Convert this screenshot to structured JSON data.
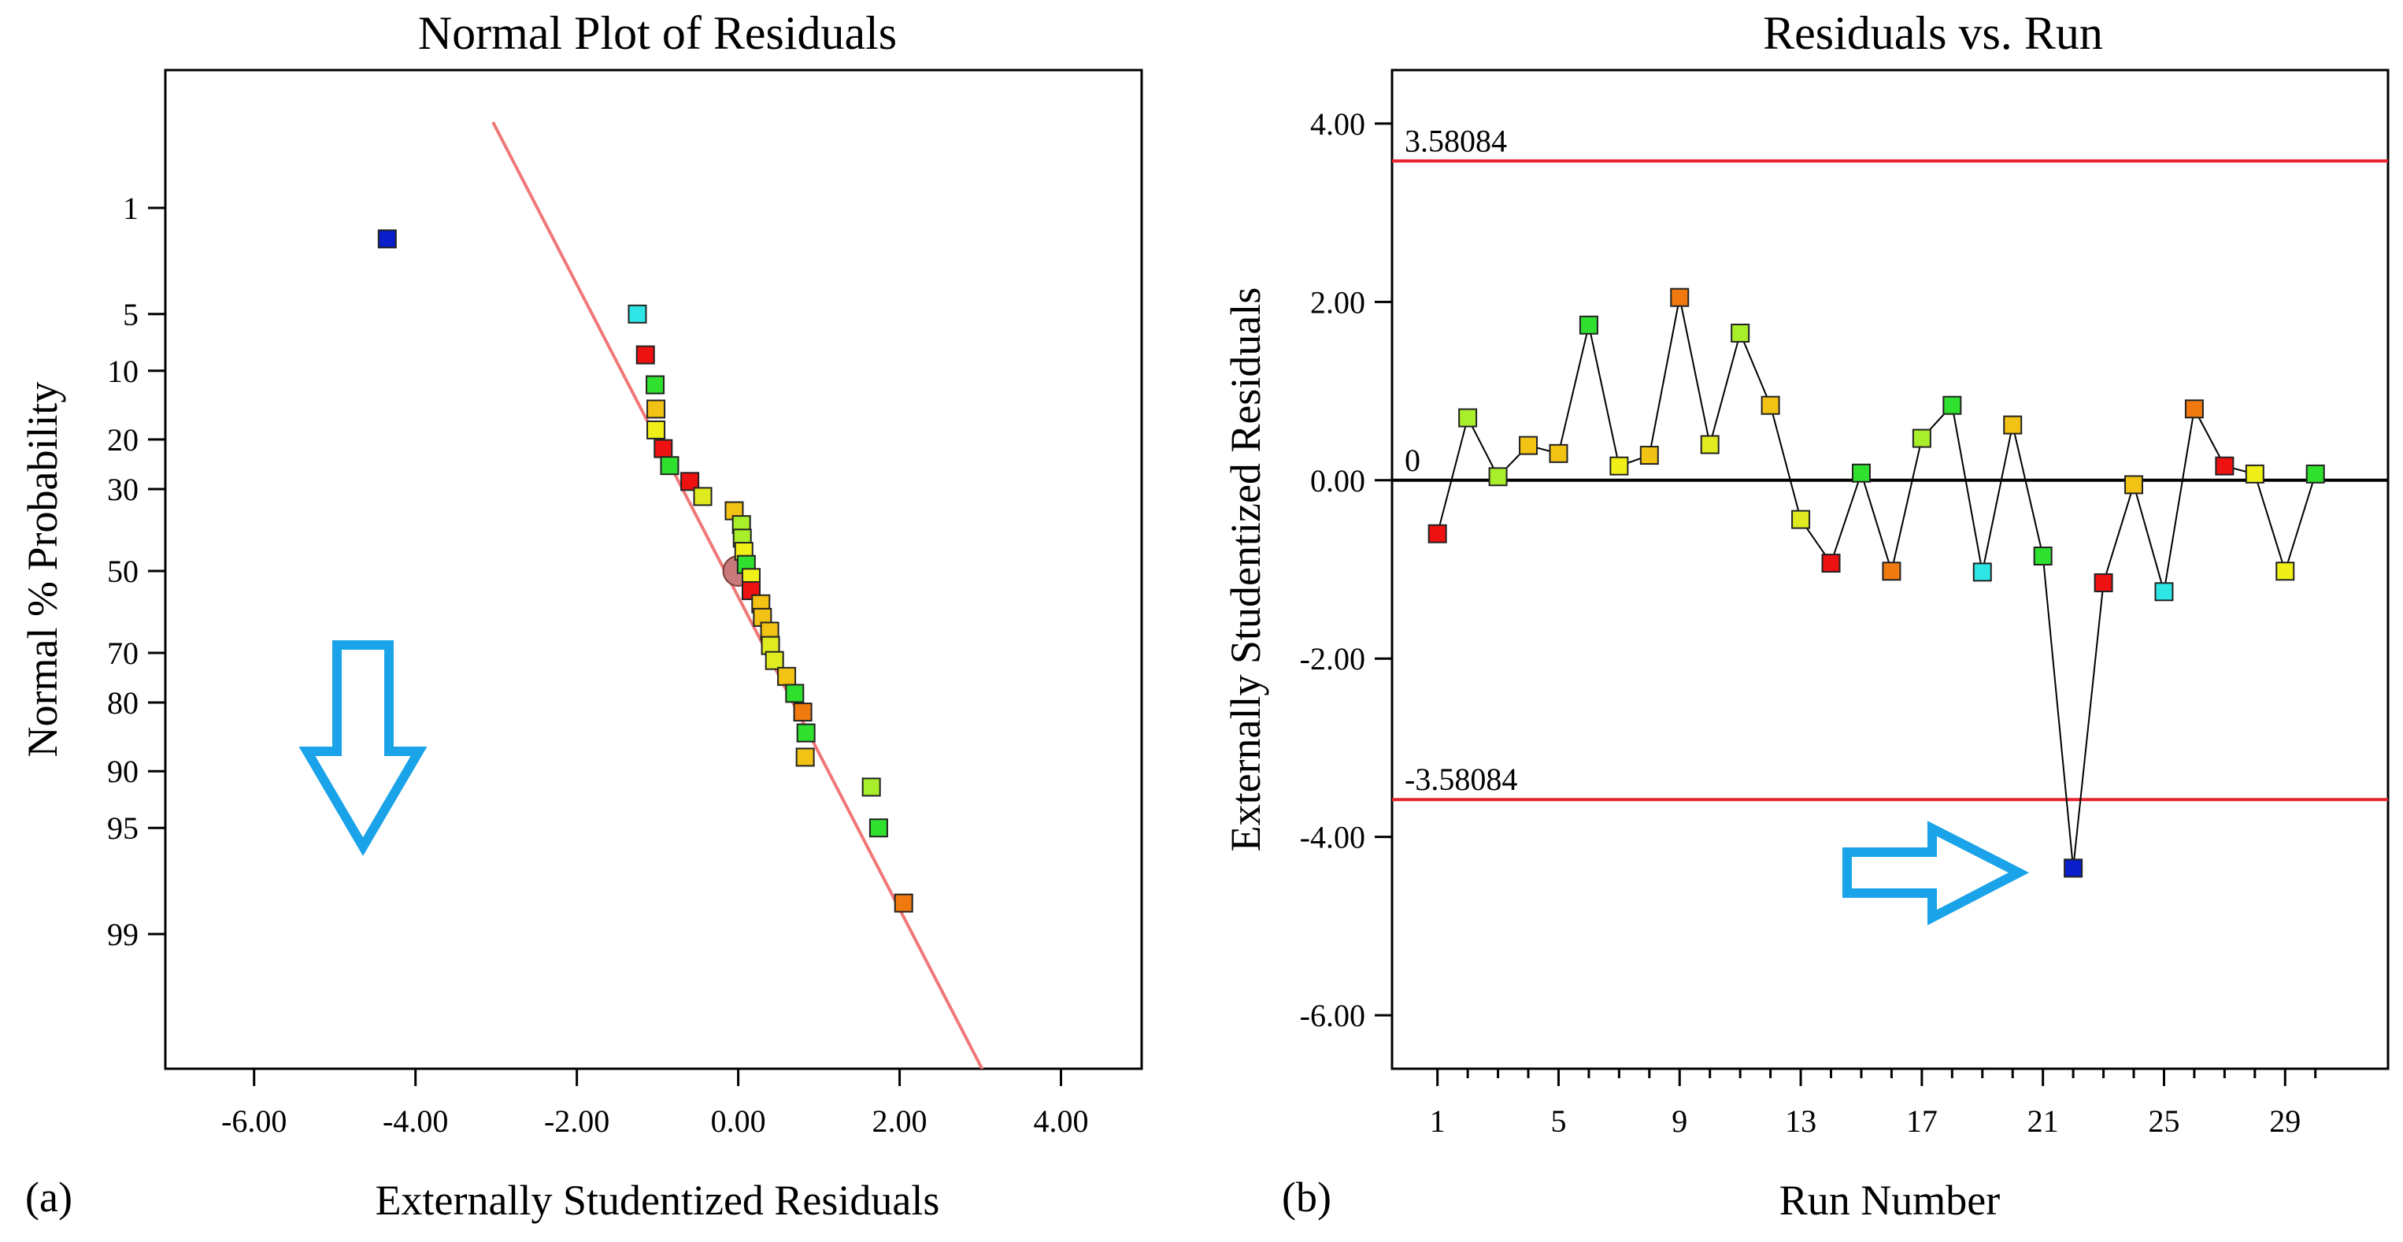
{
  "chart_data": [
    {
      "type": "scatter",
      "panel_label": "(a)",
      "title": "Normal Plot of Residuals",
      "xlabel": "Externally Studentized Residuals",
      "ylabel": "Normal % Probability",
      "xlim": [
        -7.1,
        5.0
      ],
      "x_ticks": [
        {
          "value": -6,
          "label": "-6.00"
        },
        {
          "value": -4,
          "label": "-4.00"
        },
        {
          "value": -2,
          "label": "-2.00"
        },
        {
          "value": 0,
          "label": "0.00"
        },
        {
          "value": 2,
          "label": "2.00"
        },
        {
          "value": 4,
          "label": "4.00"
        }
      ],
      "y_ticks": [
        {
          "value": 1,
          "label": "1"
        },
        {
          "value": 5,
          "label": "5"
        },
        {
          "value": 10,
          "label": "10"
        },
        {
          "value": 20,
          "label": "20"
        },
        {
          "value": 30,
          "label": "30"
        },
        {
          "value": 50,
          "label": "50"
        },
        {
          "value": 70,
          "label": "70"
        },
        {
          "value": 80,
          "label": "80"
        },
        {
          "value": 90,
          "label": "90"
        },
        {
          "value": 95,
          "label": "95"
        },
        {
          "value": 99,
          "label": "99"
        }
      ],
      "reference_line": {
        "color": "#f07878",
        "points": [
          [
            -3.04,
            0.2
          ],
          [
            3.12,
            99.95
          ]
        ]
      },
      "center_marker": {
        "x": 0.0,
        "y": 50
      },
      "points": [
        {
          "x": -4.35,
          "y": 1.67,
          "color": "#0a1ecc"
        },
        {
          "x": -1.25,
          "y": 5.0,
          "color": "#2fe6e6"
        },
        {
          "x": -1.15,
          "y": 8.33,
          "color": "#ee1111"
        },
        {
          "x": -1.03,
          "y": 11.67,
          "color": "#2fe02f"
        },
        {
          "x": -1.02,
          "y": 15.0,
          "color": "#f2c215"
        },
        {
          "x": -1.02,
          "y": 18.33,
          "color": "#f0f018"
        },
        {
          "x": -0.93,
          "y": 21.67,
          "color": "#ee1111"
        },
        {
          "x": -0.85,
          "y": 25.0,
          "color": "#2fe02f"
        },
        {
          "x": -0.6,
          "y": 28.33,
          "color": "#ee1111"
        },
        {
          "x": -0.44,
          "y": 31.67,
          "color": "#e0ea20"
        },
        {
          "x": -0.05,
          "y": 35.0,
          "color": "#f2c215"
        },
        {
          "x": 0.04,
          "y": 38.33,
          "color": "#a8ee2a"
        },
        {
          "x": 0.05,
          "y": 41.67,
          "color": "#a8ee2a"
        },
        {
          "x": 0.07,
          "y": 45.0,
          "color": "#f0f018"
        },
        {
          "x": 0.1,
          "y": 48.33,
          "color": "#2fe02f"
        },
        {
          "x": 0.16,
          "y": 51.67,
          "color": "#f0f018"
        },
        {
          "x": 0.16,
          "y": 55.0,
          "color": "#ee1111"
        },
        {
          "x": 0.28,
          "y": 58.33,
          "color": "#f2c215"
        },
        {
          "x": 0.3,
          "y": 61.67,
          "color": "#f2c215"
        },
        {
          "x": 0.39,
          "y": 65.0,
          "color": "#f2c215"
        },
        {
          "x": 0.4,
          "y": 68.33,
          "color": "#e0ea20"
        },
        {
          "x": 0.45,
          "y": 71.67,
          "color": "#e0ea20"
        },
        {
          "x": 0.6,
          "y": 75.0,
          "color": "#f2c215"
        },
        {
          "x": 0.7,
          "y": 78.33,
          "color": "#2fe02f"
        },
        {
          "x": 0.8,
          "y": 81.67,
          "color": "#f07a10"
        },
        {
          "x": 0.84,
          "y": 85.0,
          "color": "#2fe02f"
        },
        {
          "x": 0.83,
          "y": 88.33,
          "color": "#f2c215"
        },
        {
          "x": 1.65,
          "y": 91.67,
          "color": "#a8ee2a"
        },
        {
          "x": 1.74,
          "y": 95.0,
          "color": "#2fe02f"
        },
        {
          "x": 2.05,
          "y": 98.33,
          "color": "#f07a10"
        }
      ]
    },
    {
      "type": "line",
      "panel_label": "(b)",
      "title": "Residuals vs. Run",
      "xlabel": "Run Number",
      "ylabel": "Externally Studentized Residuals",
      "xlim": [
        -0.5,
        32.4
      ],
      "ylim": [
        -6.6,
        4.6
      ],
      "x_ticks": [
        {
          "value": 1,
          "label": "1"
        },
        {
          "value": 5,
          "label": "5"
        },
        {
          "value": 9,
          "label": "9"
        },
        {
          "value": 13,
          "label": "13"
        },
        {
          "value": 17,
          "label": "17"
        },
        {
          "value": 21,
          "label": "21"
        },
        {
          "value": 25,
          "label": "25"
        },
        {
          "value": 29,
          "label": "29"
        }
      ],
      "y_ticks": [
        {
          "value": 4,
          "label": "4.00"
        },
        {
          "value": 2,
          "label": "2.00"
        },
        {
          "value": 0,
          "label": "0.00"
        },
        {
          "value": -2,
          "label": "-2.00"
        },
        {
          "value": -4,
          "label": "-4.00"
        },
        {
          "value": -6,
          "label": "-6.00"
        }
      ],
      "reference_lines": [
        {
          "y": 3.58084,
          "label": "3.58084",
          "color": "#e8232d"
        },
        {
          "y": 0,
          "label": "0",
          "color": "#000000"
        },
        {
          "y": -3.58084,
          "label": "-3.58084",
          "color": "#e8232d"
        }
      ],
      "points": [
        {
          "x": 1,
          "y": -0.6,
          "color": "#ee1111"
        },
        {
          "x": 2,
          "y": 0.7,
          "color": "#a8ee2a"
        },
        {
          "x": 3,
          "y": 0.04,
          "color": "#a8ee2a"
        },
        {
          "x": 4,
          "y": 0.39,
          "color": "#f2c215"
        },
        {
          "x": 5,
          "y": 0.3,
          "color": "#f2c215"
        },
        {
          "x": 6,
          "y": 1.74,
          "color": "#2fe02f"
        },
        {
          "x": 7,
          "y": 0.16,
          "color": "#f0f018"
        },
        {
          "x": 8,
          "y": 0.28,
          "color": "#f2c215"
        },
        {
          "x": 9,
          "y": 2.05,
          "color": "#f07a10"
        },
        {
          "x": 10,
          "y": 0.4,
          "color": "#e0ea20"
        },
        {
          "x": 11,
          "y": 1.65,
          "color": "#a8ee2a"
        },
        {
          "x": 12,
          "y": 0.84,
          "color": "#f2c215"
        },
        {
          "x": 13,
          "y": -0.44,
          "color": "#e0ea20"
        },
        {
          "x": 14,
          "y": -0.93,
          "color": "#ee1111"
        },
        {
          "x": 15,
          "y": 0.08,
          "color": "#2fe02f"
        },
        {
          "x": 16,
          "y": -1.02,
          "color": "#f07a10"
        },
        {
          "x": 17,
          "y": 0.47,
          "color": "#a8ee2a"
        },
        {
          "x": 18,
          "y": 0.84,
          "color": "#2fe02f"
        },
        {
          "x": 19,
          "y": -1.03,
          "color": "#2fe6e6"
        },
        {
          "x": 20,
          "y": 0.62,
          "color": "#f2c215"
        },
        {
          "x": 21,
          "y": -0.85,
          "color": "#2fe02f"
        },
        {
          "x": 22,
          "y": -4.35,
          "color": "#0a1ecc"
        },
        {
          "x": 23,
          "y": -1.15,
          "color": "#ee1111"
        },
        {
          "x": 24,
          "y": -0.05,
          "color": "#f2c215"
        },
        {
          "x": 25,
          "y": -1.25,
          "color": "#2fe6e6"
        },
        {
          "x": 26,
          "y": 0.8,
          "color": "#f07a10"
        },
        {
          "x": 27,
          "y": 0.16,
          "color": "#ee1111"
        },
        {
          "x": 28,
          "y": 0.07,
          "color": "#f0f018"
        },
        {
          "x": 29,
          "y": -1.02,
          "color": "#f0f018"
        },
        {
          "x": 30,
          "y": 0.07,
          "color": "#2fe02f"
        }
      ]
    }
  ],
  "annotation_color": "#1aa3e8"
}
